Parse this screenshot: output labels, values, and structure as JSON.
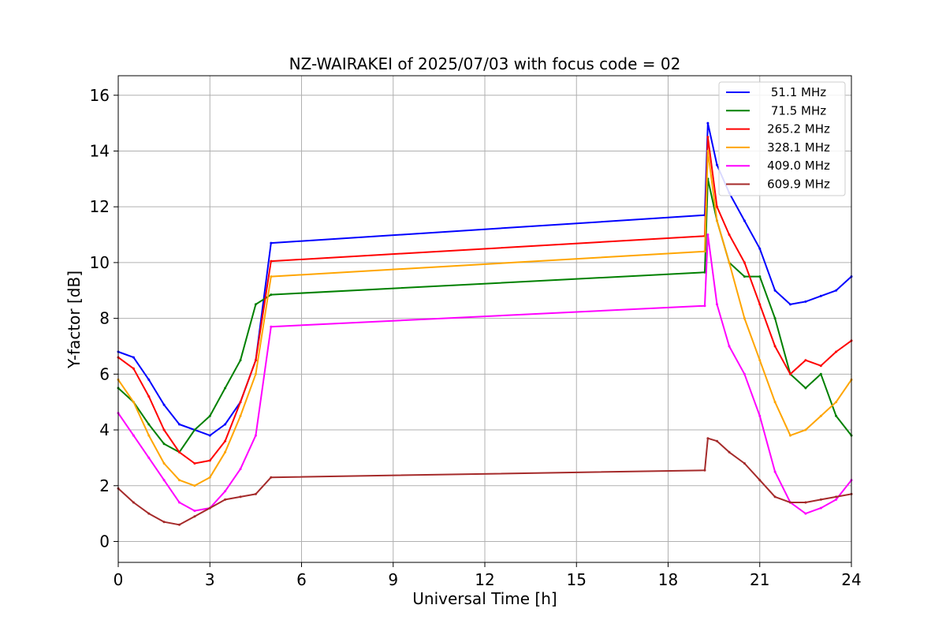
{
  "chart_data": {
    "type": "line",
    "title": "NZ-WAIRAKEI of 2025/07/03 with focus code = 02",
    "xlabel": "Universal Time [h]",
    "ylabel": "Y-factor [dB]",
    "xlim": [
      0,
      24
    ],
    "ylim": [
      -0.75,
      16.7
    ],
    "xticks": [
      0,
      3,
      6,
      9,
      12,
      15,
      18,
      21,
      24
    ],
    "xtick_labels": [
      "0",
      "3",
      "6",
      "9",
      "12",
      "15",
      "18",
      "21",
      "24"
    ],
    "yticks": [
      0,
      2,
      4,
      6,
      8,
      10,
      12,
      14,
      16
    ],
    "ytick_labels": [
      "0",
      "2",
      "4",
      "6",
      "8",
      "10",
      "12",
      "14",
      "16"
    ],
    "grid": true,
    "legend_position": "top-right",
    "x": [
      0,
      0.5,
      1,
      1.5,
      2,
      2.5,
      3,
      3.5,
      4,
      4.5,
      5,
      19.2,
      19.3,
      19.6,
      20,
      20.5,
      21,
      21.5,
      22,
      22.5,
      23,
      23.5,
      24
    ],
    "series": [
      {
        "name": "51.1 MHz",
        "color": "#0000ff",
        "values": [
          6.8,
          6.6,
          5.8,
          4.9,
          4.2,
          4.0,
          3.8,
          4.2,
          5.0,
          6.5,
          10.7,
          11.7,
          15.0,
          13.5,
          12.5,
          11.5,
          10.5,
          9.0,
          8.5,
          8.6,
          8.8,
          9.0,
          9.5
        ]
      },
      {
        "name": "71.5 MHz",
        "color": "#008000",
        "values": [
          5.5,
          5.0,
          4.2,
          3.5,
          3.2,
          4.0,
          4.5,
          5.5,
          6.5,
          8.5,
          8.85,
          9.65,
          13.0,
          11.5,
          10.0,
          9.5,
          9.5,
          8.0,
          6.0,
          5.5,
          6.0,
          4.5,
          3.8
        ]
      },
      {
        "name": "265.2 MHz",
        "color": "#ff0000",
        "values": [
          6.6,
          6.2,
          5.2,
          4.0,
          3.2,
          2.8,
          2.9,
          3.6,
          5.0,
          6.5,
          10.05,
          10.95,
          14.5,
          12.0,
          11.0,
          10.0,
          8.5,
          7.0,
          6.0,
          6.5,
          6.3,
          6.8,
          7.2
        ]
      },
      {
        "name": "328.1 MHz",
        "color": "#ffa500",
        "values": [
          5.8,
          5.0,
          3.8,
          2.8,
          2.2,
          2.0,
          2.3,
          3.2,
          4.5,
          6.0,
          9.5,
          10.4,
          14.0,
          11.5,
          10.0,
          8.0,
          6.5,
          5.0,
          3.8,
          4.0,
          4.5,
          5.0,
          5.8
        ]
      },
      {
        "name": "409.0 MHz",
        "color": "#ff00ff",
        "values": [
          4.6,
          3.8,
          3.0,
          2.2,
          1.4,
          1.1,
          1.2,
          1.8,
          2.6,
          3.8,
          7.7,
          8.45,
          11.0,
          8.5,
          7.0,
          6.0,
          4.5,
          2.5,
          1.4,
          1.0,
          1.2,
          1.5,
          2.2
        ]
      },
      {
        "name": "609.9 MHz",
        "color": "#a52a2a",
        "values": [
          1.9,
          1.4,
          1.0,
          0.7,
          0.6,
          0.9,
          1.2,
          1.5,
          1.6,
          1.7,
          2.3,
          2.55,
          3.7,
          3.6,
          3.2,
          2.8,
          2.2,
          1.6,
          1.4,
          1.4,
          1.5,
          1.6,
          1.7
        ]
      }
    ]
  }
}
